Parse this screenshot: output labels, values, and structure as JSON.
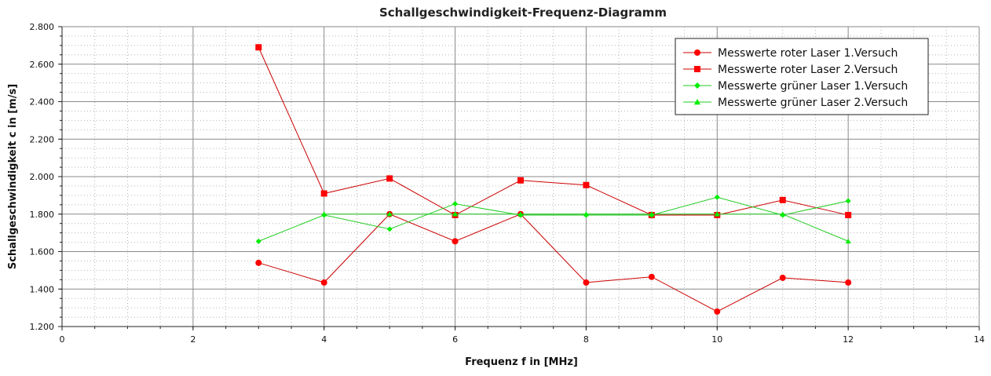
{
  "chart_data": {
    "type": "line",
    "title": "Schallgeschwindigkeit-Frequenz-Diagramm",
    "xlabel": "Frequenz f in [MHz]",
    "ylabel": "Schallgeschwindigkeit c in [m/s]",
    "xlim": [
      0,
      14
    ],
    "ylim": [
      1200,
      2800
    ],
    "x_ticks": [
      0,
      2,
      4,
      6,
      8,
      10,
      12,
      14
    ],
    "y_ticks": [
      1200,
      1400,
      1600,
      1800,
      2000,
      2200,
      2400,
      2600,
      2800
    ],
    "x_tick_labels": [
      "0",
      "2",
      "4",
      "6",
      "8",
      "10",
      "12",
      "14"
    ],
    "y_tick_labels": [
      "1.200",
      "1.400",
      "1.600",
      "1.800",
      "2.000",
      "2.200",
      "2.400",
      "2.600",
      "2.800"
    ],
    "grid": true,
    "legend_position": "top-right",
    "x": [
      3,
      4,
      5,
      6,
      7,
      8,
      9,
      10,
      11,
      12
    ],
    "series": [
      {
        "name": "Messwerte roter Laser 1.Versuch",
        "color": "#ff0000",
        "line_color": "#cc0000",
        "marker": "circle",
        "values": [
          1540,
          1435,
          1800,
          1655,
          1800,
          1435,
          1465,
          1280,
          1460,
          1435
        ]
      },
      {
        "name": "Messwerte roter Laser 2.Versuch",
        "color": "#ff0000",
        "line_color": "#cc0000",
        "marker": "square",
        "values": [
          2690,
          1910,
          1990,
          1795,
          1980,
          1955,
          1795,
          1795,
          1875,
          1795
        ]
      },
      {
        "name": "Messwerte grüner Laser 1.Versuch",
        "color": "#00ee00",
        "line_color": "#22cc22",
        "marker": "diamond",
        "values": [
          1655,
          1795,
          1720,
          1855,
          1795,
          1795,
          1795,
          1890,
          1795,
          1870
        ]
      },
      {
        "name": "Messwerte grüner Laser 2.Versuch",
        "color": "#00ee00",
        "line_color": "#22cc22",
        "marker": "triangle",
        "values": [
          null,
          1800,
          1800,
          1800,
          1800,
          1800,
          1800,
          1800,
          1800,
          1655
        ]
      }
    ]
  }
}
